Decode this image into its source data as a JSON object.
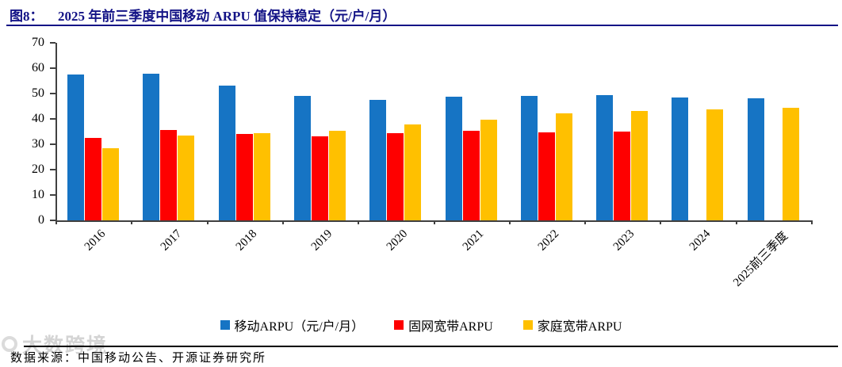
{
  "header": {
    "figure_label": "图8：",
    "title": "2025 年前三季度中国移动 ARPU 值保持稳定（元/户/月）"
  },
  "footer": {
    "source": "数据来源：中国移动公告、开源证券研究所",
    "watermark": "大数跨境"
  },
  "colors": {
    "mobile_blue": "#1674C4",
    "fixed_red": "#FE0000",
    "home_yellow": "#FFC000",
    "title_navy": "#131386",
    "axis": "#404040"
  },
  "chart_data": {
    "type": "bar",
    "title": "2025年前三季度中国移动ARPU值保持稳定（元/户/月）",
    "categories": [
      "2016",
      "2017",
      "2018",
      "2019",
      "2020",
      "2021",
      "2022",
      "2023",
      "2024",
      "2025前三季度"
    ],
    "series": [
      {
        "name": "移动ARPU（元/户/月）",
        "color": "mobile_blue",
        "values": [
          57.5,
          57.7,
          53.1,
          49.1,
          47.4,
          48.8,
          49.0,
          49.3,
          48.5,
          48.1
        ]
      },
      {
        "name": "固网宽带ARPU",
        "color": "fixed_red",
        "values": [
          32.6,
          35.5,
          34.0,
          33.2,
          34.4,
          35.3,
          34.7,
          35.0,
          null,
          null
        ]
      },
      {
        "name": "家庭宽带ARPU",
        "color": "home_yellow",
        "values": [
          28.4,
          33.3,
          34.3,
          35.4,
          37.8,
          39.7,
          42.2,
          43.1,
          43.6,
          44.4
        ]
      }
    ],
    "xlabel": "",
    "ylabel": "",
    "ylim": [
      0,
      70
    ],
    "ytick_step": 10,
    "grid": false,
    "legend_position": "bottom"
  }
}
